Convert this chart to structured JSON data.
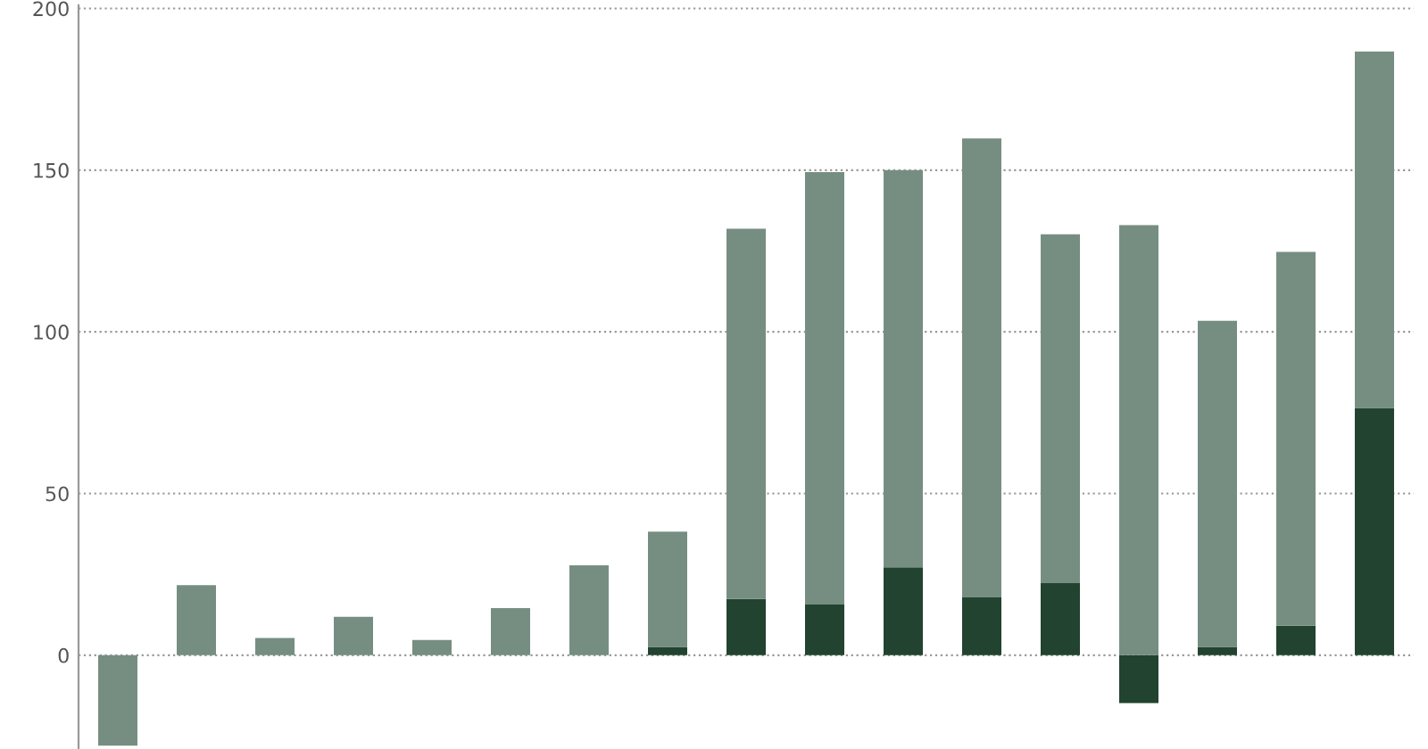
{
  "chart_data": {
    "type": "bar",
    "stacked": true,
    "categories": [
      null,
      null,
      null,
      null,
      null,
      null,
      null,
      null,
      null,
      null,
      null,
      null,
      null,
      null,
      null,
      null,
      null
    ],
    "series": [
      {
        "color": "#21432f",
        "values": [
          0,
          0,
          0,
          0,
          0,
          0,
          0,
          2.6,
          17.4,
          15.7,
          27.2,
          17.9,
          22.3,
          -14.8,
          2.6,
          9.1,
          76.5
        ]
      },
      {
        "color": "#768e82",
        "values": [
          -28,
          21.7,
          5.3,
          11.9,
          4.7,
          14.6,
          27.8,
          35.6,
          114.5,
          133.7,
          122.8,
          141.9,
          107.9,
          133,
          100.8,
          115.6,
          110.2
        ]
      }
    ],
    "ylim": [
      -29,
      201
    ],
    "yticks": [
      0,
      50,
      100,
      150,
      200
    ],
    "grid": "y"
  }
}
